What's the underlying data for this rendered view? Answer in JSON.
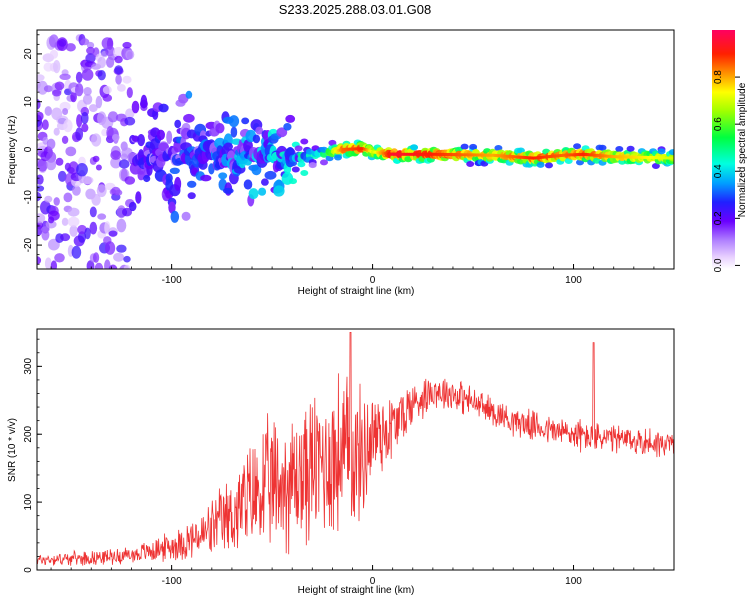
{
  "chart_data": [
    {
      "type": "heatmap",
      "title": "S233.2025.288.03.01.G08",
      "xlabel": "Height of straight line (km)",
      "ylabel": "Frequency (Hz)",
      "xlim": [
        -167,
        150
      ],
      "ylim": [
        -25,
        25
      ],
      "xticks": [
        -100,
        0,
        100
      ],
      "yticks": [
        -20,
        -10,
        0,
        10,
        20
      ],
      "colorbar": {
        "label": "Normalized spectral amplitude",
        "range": [
          0,
          1
        ],
        "ticks": [
          "0.0",
          "0.2",
          "0.4",
          "0.6",
          "0.8"
        ],
        "tick_values": [
          0.0,
          0.2,
          0.4,
          0.6,
          0.8
        ]
      },
      "ridge": {
        "description_x": [
          -167,
          -120,
          -90,
          -60,
          -40,
          -25,
          -15,
          -5,
          0,
          10,
          30,
          60,
          80,
          95,
          105,
          120,
          150
        ],
        "freq_hz": [
          -3,
          -2,
          -1,
          -1.5,
          -2,
          -1,
          0,
          0.2,
          -0.5,
          -1,
          -1,
          -1.2,
          -1.8,
          -1.2,
          -1,
          -1.5,
          -1.8
        ],
        "peak_amplitude": [
          0.1,
          0.2,
          0.3,
          0.35,
          0.4,
          0.5,
          0.85,
          0.9,
          0.7,
          0.95,
          0.9,
          0.8,
          0.9,
          0.85,
          0.9,
          0.8,
          0.7
        ]
      }
    },
    {
      "type": "line",
      "xlabel": "Height of straight line (km)",
      "ylabel": "SNR (10 * v/v)",
      "xlim": [
        -167,
        150
      ],
      "ylim": [
        0,
        355
      ],
      "xticks": [
        -100,
        0,
        100
      ],
      "yticks": [
        0,
        100,
        200,
        300
      ],
      "series": [
        {
          "name": "SNR",
          "color": "#ee3333",
          "envelope_x": [
            -167,
            -140,
            -120,
            -100,
            -85,
            -70,
            -55,
            -40,
            -25,
            -15,
            -10,
            -5,
            0,
            10,
            20,
            30,
            40,
            55,
            70,
            90,
            100,
            110,
            130,
            150
          ],
          "envelope_mean": [
            15,
            18,
            22,
            35,
            50,
            80,
            120,
            130,
            160,
            170,
            160,
            170,
            200,
            210,
            245,
            265,
            260,
            240,
            220,
            205,
            200,
            195,
            190,
            185
          ],
          "envelope_spread": [
            10,
            12,
            14,
            25,
            40,
            70,
            110,
            120,
            130,
            150,
            130,
            110,
            90,
            60,
            40,
            30,
            30,
            25,
            25,
            25,
            30,
            25,
            25,
            25
          ]
        }
      ]
    }
  ]
}
